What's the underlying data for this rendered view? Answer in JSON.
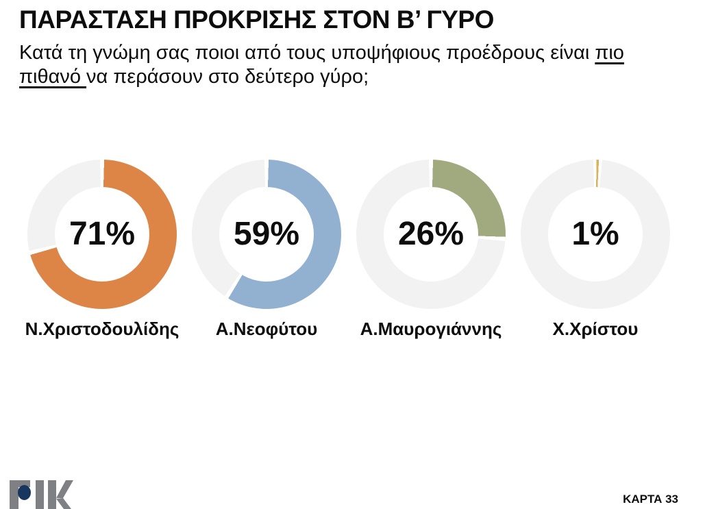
{
  "page": {
    "title": "ΠΑΡΑΣΤΑΣΗ ΠΡΟΚΡΙΣΗΣ ΣΤΟΝ Β’ ΓΥΡΟ",
    "subtitle_lines": [
      {
        "segments": [
          {
            "text": "Κατά τη γνώμη σας ποιοι από τους υποψήφιους προέδρους είναι ",
            "underline": false
          },
          {
            "text": "πιο",
            "underline": true
          }
        ]
      },
      {
        "segments": [
          {
            "text": "πιθανό ",
            "underline": true
          },
          {
            "text": "να περάσουν στο δεύτερο γύρο;",
            "underline": false
          }
        ]
      }
    ]
  },
  "chart_data": {
    "type": "donut",
    "title": "ΠΑΡΑΣΤΑΣΗ ΠΡΟΚΡΙΣΗΣ ΣΤΟΝ Β’ ΓΥΡΟ",
    "question": "Κατά τη γνώμη σας ποιοι από τους υποψήφιους προέδρους είναι πιο πιθανό να περάσουν στο δεύτερο γύρο;",
    "categories": [
      "Ν.Χριστοδουλίδης",
      "Α.Νεοφύτου",
      "Α.Μαυρογιάννης",
      "Χ.Χρίστου"
    ],
    "values": [
      71,
      59,
      26,
      1
    ],
    "value_labels": [
      "71%",
      "59%",
      "26%",
      "1%"
    ],
    "colors": [
      "#DD8546",
      "#92B1D0",
      "#A0AA7E",
      "#D9B25C"
    ],
    "track_color": "#F2F2F2",
    "unit": "%",
    "start_angle_deg": 0,
    "direction": "clockwise",
    "legend": "none"
  },
  "footer": {
    "logo": "ΡΙΚ",
    "card_label": "ΚΑΡΤΑ 33",
    "accent_color": "#17375E",
    "logo_gray": "#7E8083"
  }
}
